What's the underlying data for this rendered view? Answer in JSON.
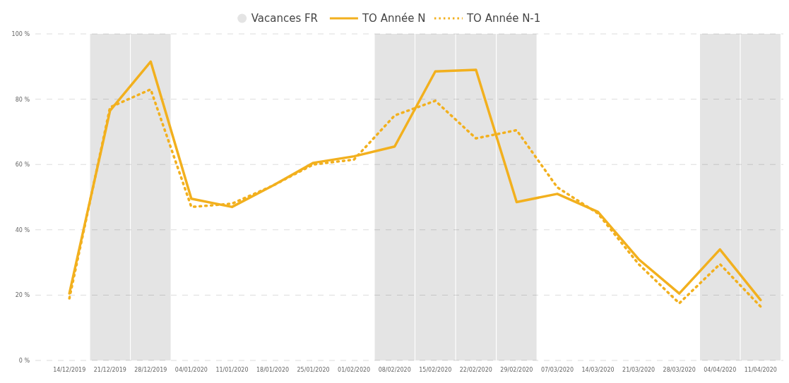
{
  "chart_data": {
    "type": "line",
    "categories": [
      "14/12/2019",
      "21/12/2019",
      "28/12/2019",
      "04/01/2020",
      "11/01/2020",
      "18/01/2020",
      "25/01/2020",
      "01/02/2020",
      "08/02/2020",
      "15/02/2020",
      "22/02/2020",
      "29/02/2020",
      "07/03/2020",
      "14/03/2020",
      "21/03/2020",
      "28/03/2020",
      "04/04/2020",
      "11/04/2020"
    ],
    "series": [
      {
        "name": "Vacances FR",
        "type": "bar",
        "color": "#e4e4e4",
        "values": [
          null,
          100,
          100,
          null,
          null,
          null,
          null,
          null,
          100,
          100,
          100,
          100,
          null,
          null,
          null,
          null,
          100,
          100
        ]
      },
      {
        "name": "TO Année N",
        "color": "#f2b01e",
        "line_style": "solid",
        "values": [
          20.5,
          76.5,
          91.5,
          49.5,
          47,
          53.5,
          60.5,
          62.5,
          65.5,
          88.5,
          89,
          48.5,
          51,
          45.5,
          31,
          20.5,
          34,
          18.5
        ]
      },
      {
        "name": "TO Année N-1",
        "color": "#f2b01e",
        "line_style": "dotted",
        "values": [
          19,
          77.5,
          83,
          47,
          48,
          53.5,
          60,
          61.5,
          75,
          79.5,
          68,
          70.5,
          53,
          45,
          29.5,
          17.5,
          29.5,
          16.5
        ]
      }
    ],
    "ylim": [
      0,
      100
    ],
    "yticks": [
      {
        "value": 0,
        "label": "0 %"
      },
      {
        "value": 20,
        "label": "20 %"
      },
      {
        "value": 40,
        "label": "40 %"
      },
      {
        "value": 60,
        "label": "60 %"
      },
      {
        "value": 80,
        "label": "80 %"
      },
      {
        "value": 100,
        "label": "100 %"
      }
    ],
    "grid": "y",
    "legend": "top",
    "marker": "none"
  }
}
